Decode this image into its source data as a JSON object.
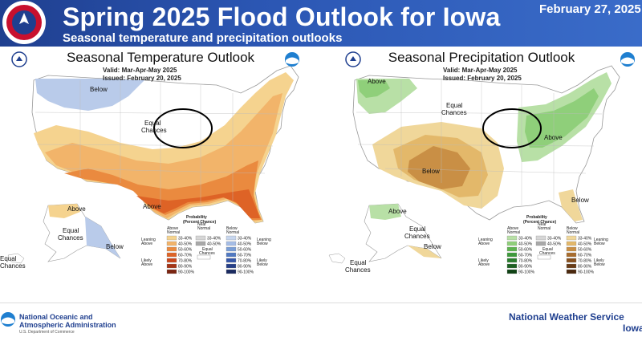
{
  "header": {
    "title": "Spring 2025 Flood Outlook for Iowa",
    "date": "February 27, 2025",
    "subtitle": "Seasonal temperature and precipitation outlooks"
  },
  "temperature": {
    "title": "Seasonal Temperature Outlook",
    "valid": "Valid:  Mar-Apr-May 2025",
    "issued": "Issued:  February 20, 2025",
    "labels": {
      "below": "Below",
      "equal_chances": "Equal\nChances",
      "above": "Above",
      "ak_above": "Above",
      "ak_equal": "Equal\nChances",
      "ak_below": "Below",
      "hi_equal": "Equal\nChances"
    },
    "legend": {
      "heading": "Probability\n(Percent Chance)",
      "col_above": "Above\nNormal",
      "col_near": "Near\nNormal",
      "col_below": "Below\nNormal",
      "leaning_left": "Leaning\nAbove",
      "likely_left": "Likely\nAbove",
      "leaning_right": "Leaning\nBelow",
      "likely_right": "Likely\nBelow",
      "equal_chances": "Equal\nChances",
      "above_ranges": [
        "33-40%",
        "40-50%",
        "50-60%",
        "60-70%",
        "70-80%",
        "80-90%",
        "90-100%"
      ],
      "near_ranges": [
        "33-40%",
        "40-50%"
      ],
      "below_ranges": [
        "33-40%",
        "40-50%",
        "50-60%",
        "60-70%",
        "70-80%",
        "80-90%",
        "90-100%"
      ],
      "above_colors": [
        "#f5d38f",
        "#f2b46a",
        "#ea8a3f",
        "#de6326",
        "#c9461c",
        "#a43416",
        "#7a2410"
      ],
      "near_colors": [
        "#d6d6d6",
        "#a8a8a8"
      ],
      "below_colors": [
        "#c7d6ee",
        "#a5bde6",
        "#7a9ed6",
        "#5179c2",
        "#3556a8",
        "#263f88",
        "#1a2a60"
      ]
    }
  },
  "precipitation": {
    "title": "Seasonal Precipitation Outlook",
    "valid": "Valid:  Mar-Apr-May 2025",
    "issued": "Issued:  February 20, 2025",
    "labels": {
      "nw_above": "Above",
      "equal_chances": "Equal\nChances",
      "below": "Below",
      "above": "Above",
      "fl_below": "Below",
      "ak_above": "Above",
      "ak_equal": "Equal\nChances",
      "ak_below": "Below",
      "hi_equal": "Equal\nChances"
    },
    "legend": {
      "heading": "Probability\n(Percent Chance)",
      "col_above": "Above\nNormal",
      "col_near": "Near\nNormal",
      "col_below": "Below\nNormal",
      "leaning_left": "Leaning\nAbove",
      "likely_left": "Likely\nAbove",
      "leaning_right": "Leaning\nBelow",
      "likely_right": "Likely\nBelow",
      "equal_chances": "Equal\nChances",
      "above_ranges": [
        "33-40%",
        "40-50%",
        "50-60%",
        "60-70%",
        "70-80%",
        "80-90%",
        "90-100%"
      ],
      "near_ranges": [
        "33-40%",
        "40-50%"
      ],
      "below_ranges": [
        "33-40%",
        "40-50%",
        "50-60%",
        "60-70%",
        "70-80%",
        "80-90%",
        "90-100%"
      ],
      "above_colors": [
        "#b8e0a6",
        "#8fcf7a",
        "#5db24f",
        "#3d9a3b",
        "#2a7d2d",
        "#1c6021",
        "#0f4214"
      ],
      "near_colors": [
        "#d6d6d6",
        "#a8a8a8"
      ],
      "below_colors": [
        "#f0d79a",
        "#e3b86a",
        "#c98f45",
        "#a86c2d",
        "#87501f",
        "#683b16",
        "#4a280d"
      ]
    }
  },
  "footer": {
    "noaa_name": "National Oceanic and\nAtmospheric Administration",
    "noaa_sub": "U.S. Department of Commerce",
    "nws_line1": "National Weather Service",
    "nws_line2": "Iowa"
  },
  "colors": {
    "header_blue": "#1f3f8f",
    "circle": "#000000"
  }
}
